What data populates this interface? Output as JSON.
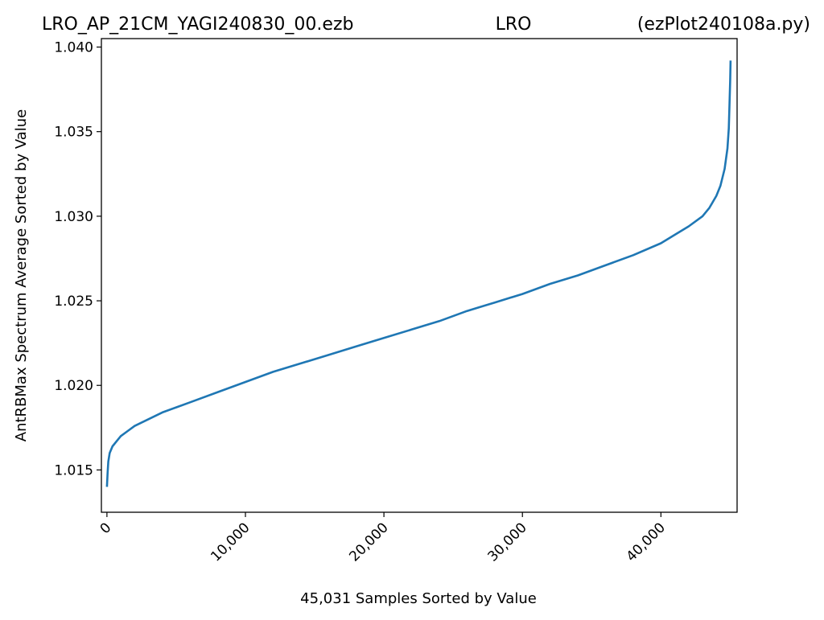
{
  "chart_data": {
    "type": "line",
    "title_left": "LRO_AP_21CM_YAGI240830_00.ezb",
    "title_center": "LRO",
    "title_right": "(ezPlot240108a.py)",
    "xlabel": "45,031 Samples Sorted by Value",
    "ylabel": "AntRBMax Spectrum Average Sorted by Value",
    "xlim": [
      -400,
      45500
    ],
    "ylim": [
      1.0125,
      1.0405
    ],
    "xticks": [
      0,
      10000,
      20000,
      30000,
      40000
    ],
    "xtick_labels": [
      "0",
      "10,000",
      "20,000",
      "30,000",
      "40,000"
    ],
    "yticks": [
      1.015,
      1.02,
      1.025,
      1.03,
      1.035,
      1.04
    ],
    "ytick_labels": [
      "1.015",
      "1.020",
      "1.025",
      "1.030",
      "1.035",
      "1.040"
    ],
    "line_color": "#1f77b4",
    "grid": false,
    "series": [
      {
        "x": [
          0,
          50,
          100,
          200,
          400,
          700,
          1000,
          1500,
          2000,
          3000,
          4000,
          5000,
          6000,
          8000,
          10000,
          12000,
          14000,
          16000,
          18000,
          20000,
          22000,
          24000,
          26000,
          28000,
          30000,
          32000,
          34000,
          36000,
          38000,
          40000,
          41000,
          42000,
          43000,
          43500,
          44000,
          44300,
          44600,
          44800,
          44900,
          44950,
          45000,
          45031
        ],
        "y": [
          1.014,
          1.0148,
          1.0155,
          1.016,
          1.0164,
          1.0167,
          1.017,
          1.0173,
          1.0176,
          1.018,
          1.0184,
          1.0187,
          1.019,
          1.0196,
          1.0202,
          1.0208,
          1.0213,
          1.0218,
          1.0223,
          1.0228,
          1.0233,
          1.0238,
          1.0244,
          1.0249,
          1.0254,
          1.026,
          1.0265,
          1.0271,
          1.0277,
          1.0284,
          1.0289,
          1.0294,
          1.03,
          1.0305,
          1.0312,
          1.0318,
          1.0328,
          1.034,
          1.0352,
          1.0365,
          1.038,
          1.0392
        ]
      }
    ]
  }
}
